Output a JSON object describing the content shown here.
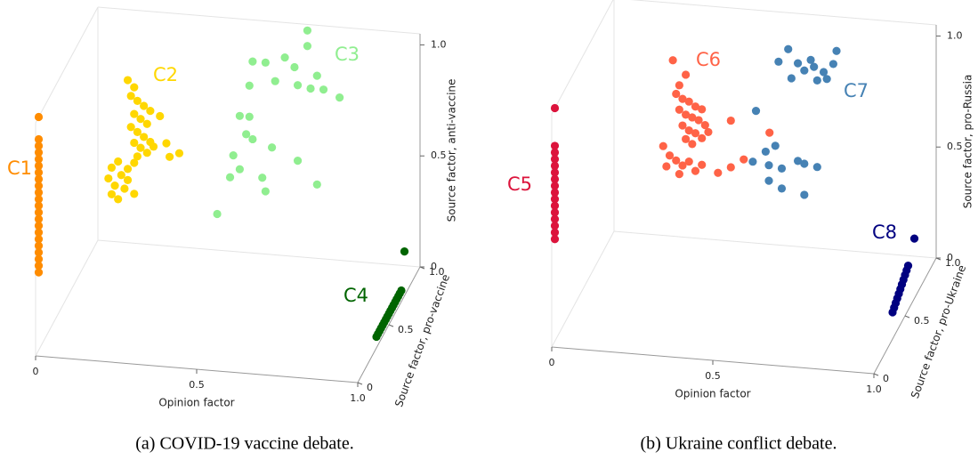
{
  "chart_data": [
    {
      "type": "scatter3d",
      "caption": "(a) COVID-19 vaccine debate.",
      "xlabel": "Opinion factor",
      "ylabel": "Source factor, pro-vaccine",
      "zlabel": "Source factor, anti-vaccine",
      "xlim": [
        0,
        1
      ],
      "ylim": [
        0,
        1
      ],
      "zlim": [
        0,
        1.05
      ],
      "xticks": [
        0,
        0.5,
        {
          "value": 1,
          "label": "1.0"
        }
      ],
      "yticks": [
        0,
        0.5,
        {
          "value": 1,
          "label": "1.0"
        }
      ],
      "zticks": [
        0,
        0.5,
        {
          "value": 1,
          "label": "1.0"
        }
      ],
      "series": [
        {
          "name": "C1",
          "color": "#ff8c00",
          "x": [
            0,
            0,
            0,
            0,
            0,
            0,
            0,
            0,
            0,
            0,
            0,
            0,
            0,
            0,
            0,
            0,
            0,
            0,
            0,
            0,
            0,
            0
          ],
          "y": [
            0.05,
            0.05,
            0.05,
            0.05,
            0.05,
            0.05,
            0.05,
            0.05,
            0.05,
            0.05,
            0.05,
            0.05,
            0.05,
            0.05,
            0.05,
            0.05,
            0.05,
            0.05,
            0.05,
            0.05,
            0.05,
            0.05
          ],
          "z": [
            0.35,
            0.38,
            0.41,
            0.44,
            0.47,
            0.5,
            0.53,
            0.56,
            0.59,
            0.62,
            0.65,
            0.68,
            0.71,
            0.74,
            0.77,
            0.8,
            0.83,
            0.86,
            0.89,
            0.92,
            0.95,
            1.05
          ]
        },
        {
          "name": "C2",
          "color": "#ffd700",
          "x": [
            0.17,
            0.19,
            0.18,
            0.2,
            0.22,
            0.24,
            0.19,
            0.21,
            0.23,
            0.18,
            0.2,
            0.22,
            0.24,
            0.19,
            0.21,
            0.23,
            0.25,
            0.2,
            0.27,
            0.29,
            0.33,
            0.3,
            0.14,
            0.12,
            0.15,
            0.17,
            0.11,
            0.13,
            0.16,
            0.12,
            0.14,
            0.19,
            0.17,
            0.19
          ],
          "y": [
            0.6,
            0.6,
            0.6,
            0.6,
            0.6,
            0.6,
            0.6,
            0.6,
            0.6,
            0.6,
            0.6,
            0.6,
            0.6,
            0.6,
            0.6,
            0.6,
            0.6,
            0.6,
            0.6,
            0.6,
            0.6,
            0.6,
            0.6,
            0.6,
            0.6,
            0.6,
            0.6,
            0.6,
            0.6,
            0.6,
            0.6,
            0.6,
            0.6,
            0.6
          ],
          "z": [
            0.95,
            0.92,
            0.88,
            0.86,
            0.84,
            0.82,
            0.8,
            0.78,
            0.76,
            0.74,
            0.72,
            0.7,
            0.68,
            0.67,
            0.65,
            0.63,
            0.66,
            0.61,
            0.8,
            0.68,
            0.64,
            0.62,
            0.58,
            0.55,
            0.52,
            0.55,
            0.5,
            0.47,
            0.46,
            0.43,
            0.41,
            0.44,
            0.5,
            0.58
          ]
        },
        {
          "name": "C3",
          "color": "#90ee90",
          "x": [
            0.66,
            0.66,
            0.53,
            0.49,
            0.59,
            0.62,
            0.56,
            0.63,
            0.67,
            0.71,
            0.76,
            0.69,
            0.48,
            0.45,
            0.47,
            0.43,
            0.49,
            0.55,
            0.63,
            0.45,
            0.42,
            0.52,
            0.53,
            0.69,
            0.38,
            0.48
          ],
          "y": [
            0.95,
            0.95,
            0.95,
            0.95,
            0.95,
            0.95,
            0.95,
            0.95,
            0.95,
            0.95,
            0.95,
            0.95,
            0.95,
            0.95,
            0.95,
            0.95,
            0.95,
            0.95,
            0.95,
            0.95,
            0.95,
            0.95,
            0.95,
            0.95,
            0.95,
            0.95
          ],
          "z": [
            1.05,
            0.98,
            0.89,
            0.89,
            0.92,
            0.88,
            0.81,
            0.8,
            0.79,
            0.79,
            0.76,
            0.85,
            0.78,
            0.64,
            0.56,
            0.46,
            0.54,
            0.51,
            0.46,
            0.4,
            0.36,
            0.37,
            0.31,
            0.36,
            0.19,
            0.64
          ]
        },
        {
          "name": "C4",
          "color": "#006400",
          "x": [
            1,
            1,
            1,
            1,
            1,
            1,
            1,
            1,
            1,
            1,
            1,
            1,
            1,
            1,
            1,
            1,
            1,
            1
          ],
          "y": [
            0.3,
            0.325,
            0.35,
            0.375,
            0.4,
            0.425,
            0.45,
            0.475,
            0.5,
            0.525,
            0.55,
            0.575,
            0.6,
            0.625,
            0.65,
            0.675,
            0.7,
            0.75
          ],
          "z": [
            0.05,
            0.05,
            0.05,
            0.05,
            0.05,
            0.05,
            0.05,
            0.05,
            0.05,
            0.05,
            0.05,
            0.05,
            0.05,
            0.05,
            0.05,
            0.05,
            0.05,
            0.2
          ]
        }
      ]
    },
    {
      "type": "scatter3d",
      "caption": "(b) Ukraine conflict debate.",
      "xlabel": "Opinion factor",
      "ylabel": "Source factor, pro-Ukraine",
      "zlabel": "Source factor, pro-Russia",
      "xlim": [
        0,
        1
      ],
      "ylim": [
        0,
        1
      ],
      "zlim": [
        0,
        1.05
      ],
      "xticks": [
        0,
        0.5,
        {
          "value": 1,
          "label": "1.0"
        }
      ],
      "yticks": [
        0,
        0.5,
        {
          "value": 1,
          "label": "1.0"
        }
      ],
      "zticks": [
        0,
        0.5,
        {
          "value": 1,
          "label": "1.0"
        }
      ],
      "series": [
        {
          "name": "C5",
          "color": "#dc143c",
          "x": [
            0,
            0,
            0,
            0,
            0,
            0,
            0,
            0,
            0,
            0,
            0,
            0,
            0,
            0,
            0,
            0
          ],
          "y": [
            0.05,
            0.05,
            0.05,
            0.05,
            0.05,
            0.05,
            0.05,
            0.05,
            0.05,
            0.05,
            0.05,
            0.05,
            0.05,
            0.05,
            0.05,
            0.05
          ],
          "z": [
            0.46,
            0.49,
            0.52,
            0.55,
            0.58,
            0.61,
            0.64,
            0.67,
            0.7,
            0.73,
            0.76,
            0.79,
            0.82,
            0.85,
            0.88,
            1.05
          ]
        },
        {
          "name": "C6",
          "color": "#ff6347",
          "x": [
            0.26,
            0.3,
            0.28,
            0.27,
            0.29,
            0.31,
            0.33,
            0.35,
            0.28,
            0.3,
            0.32,
            0.34,
            0.36,
            0.29,
            0.31,
            0.33,
            0.35,
            0.37,
            0.3,
            0.32,
            0.44,
            0.23,
            0.25,
            0.27,
            0.29,
            0.31,
            0.33,
            0.24,
            0.28,
            0.35,
            0.4,
            0.44,
            0.48,
            0.56
          ],
          "y": [
            0.6,
            0.6,
            0.6,
            0.6,
            0.6,
            0.6,
            0.6,
            0.6,
            0.6,
            0.6,
            0.6,
            0.6,
            0.6,
            0.6,
            0.6,
            0.6,
            0.6,
            0.6,
            0.6,
            0.6,
            0.6,
            0.6,
            0.6,
            0.6,
            0.6,
            0.6,
            0.6,
            0.6,
            0.6,
            0.6,
            0.6,
            0.6,
            0.6,
            0.6
          ],
          "z": [
            1.01,
            0.95,
            0.9,
            0.86,
            0.84,
            0.83,
            0.81,
            0.8,
            0.79,
            0.77,
            0.76,
            0.75,
            0.73,
            0.72,
            0.7,
            0.69,
            0.67,
            0.7,
            0.66,
            0.64,
            0.76,
            0.62,
            0.58,
            0.56,
            0.54,
            0.56,
            0.52,
            0.53,
            0.5,
            0.55,
            0.52,
            0.55,
            0.59,
            0.72
          ]
        },
        {
          "name": "C7",
          "color": "#4682b4",
          "x": [
            0.56,
            0.53,
            0.59,
            0.61,
            0.64,
            0.67,
            0.7,
            0.71,
            0.63,
            0.57,
            0.65,
            0.68,
            0.46,
            0.49,
            0.52,
            0.45,
            0.5,
            0.54,
            0.59,
            0.61,
            0.65,
            0.5,
            0.54,
            0.61
          ],
          "y": [
            0.9,
            0.9,
            0.9,
            0.9,
            0.9,
            0.9,
            0.9,
            0.9,
            0.9,
            0.9,
            0.9,
            0.9,
            0.9,
            0.9,
            0.9,
            0.9,
            0.9,
            0.9,
            0.9,
            0.9,
            0.9,
            0.9,
            0.9,
            0.9
          ],
          "z": [
            0.94,
            0.88,
            0.88,
            0.85,
            0.87,
            0.85,
            0.89,
            0.95,
            0.9,
            0.81,
            0.81,
            0.82,
            0.65,
            0.47,
            0.5,
            0.42,
            0.41,
            0.4,
            0.44,
            0.43,
            0.42,
            0.34,
            0.31,
            0.29
          ]
        },
        {
          "name": "C8",
          "color": "#000080",
          "x": [
            1,
            1,
            1,
            1,
            1,
            1,
            1,
            1,
            1,
            1,
            1,
            1
          ],
          "y": [
            0.3,
            0.325,
            0.35,
            0.375,
            0.4,
            0.425,
            0.45,
            0.475,
            0.5,
            0.525,
            0.55,
            0.65
          ],
          "z": [
            0.12,
            0.128,
            0.136,
            0.144,
            0.152,
            0.16,
            0.168,
            0.176,
            0.184,
            0.192,
            0.2,
            0.27
          ]
        }
      ]
    }
  ]
}
